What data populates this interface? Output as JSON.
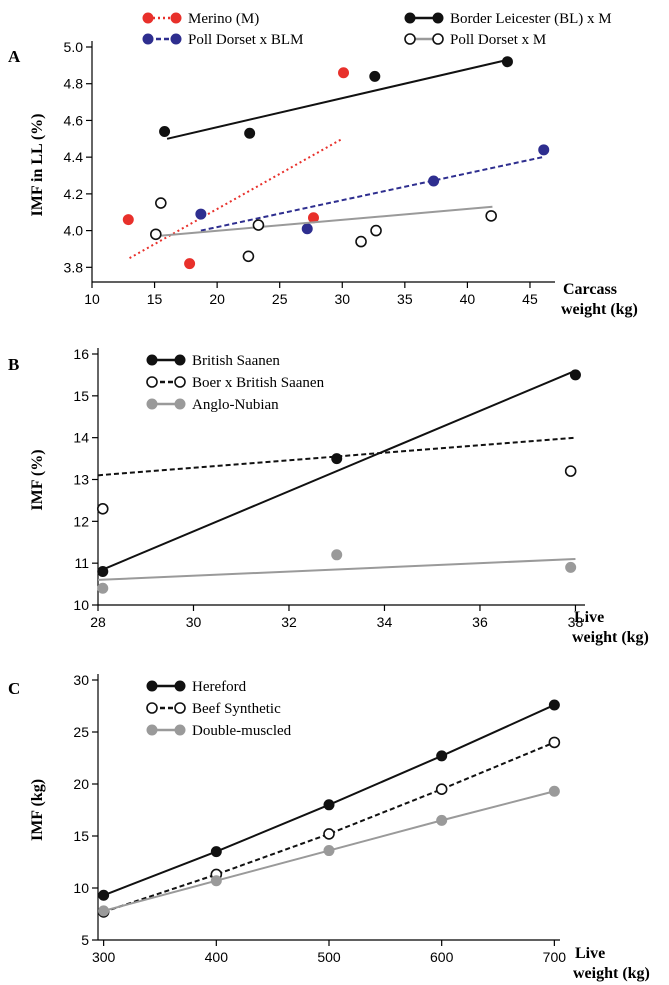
{
  "chart_data": [
    {
      "panel": "A",
      "type": "scatter",
      "xlabel": [
        "Carcass",
        "weight (kg)"
      ],
      "ylabel": "IMF in LL (%)",
      "xlim": [
        10,
        47
      ],
      "ylim": [
        3.72,
        5.0
      ],
      "xticks": [
        10,
        15,
        20,
        25,
        30,
        35,
        40,
        45
      ],
      "yticks": [
        3.8,
        4.0,
        4.2,
        4.4,
        4.6,
        4.8,
        5.0
      ],
      "ytick_decimals": 1,
      "legend": "top",
      "series": [
        {
          "name": "Merino (M)",
          "color": "#e8302b",
          "marker": "filled",
          "line_style": "dotted",
          "points": [
            [
              12.9,
              4.06
            ],
            [
              17.8,
              3.82
            ],
            [
              27.7,
              4.07
            ],
            [
              30.1,
              4.86
            ]
          ],
          "trend": [
            [
              13,
              3.85
            ],
            [
              30,
              4.5
            ]
          ]
        },
        {
          "name": "Border Leicester (BL) x M",
          "color": "#111111",
          "marker": "filled",
          "line_style": "solid",
          "points": [
            [
              15.8,
              4.54
            ],
            [
              22.6,
              4.53
            ],
            [
              32.6,
              4.84
            ],
            [
              43.2,
              4.92
            ]
          ],
          "trend": [
            [
              16,
              4.5
            ],
            [
              43.2,
              4.93
            ]
          ]
        },
        {
          "name": "Poll Dorset x BLM",
          "color": "#2e2e8f",
          "marker": "filled",
          "line_style": "dashed",
          "points": [
            [
              18.7,
              4.09
            ],
            [
              27.2,
              4.01
            ],
            [
              37.3,
              4.27
            ],
            [
              46.1,
              4.44
            ]
          ],
          "trend": [
            [
              18.7,
              4.0
            ],
            [
              46,
              4.4
            ]
          ]
        },
        {
          "name": "Poll Dorset x M",
          "color": "#9a9a9a",
          "point_color": "#111111",
          "marker": "open",
          "line_style": "solid",
          "points": [
            [
              15.1,
              3.98
            ],
            [
              15.5,
              4.15
            ],
            [
              22.5,
              3.86
            ],
            [
              23.3,
              4.03
            ],
            [
              31.5,
              3.94
            ],
            [
              32.7,
              4.0
            ],
            [
              41.9,
              4.08
            ]
          ],
          "trend": [
            [
              15.1,
              3.97
            ],
            [
              42,
              4.13
            ]
          ]
        }
      ]
    },
    {
      "panel": "B",
      "type": "scatter",
      "xlabel": [
        "Live",
        "weight (kg)"
      ],
      "ylabel": "IMF (%)",
      "xlim": [
        28,
        38.2
      ],
      "ylim": [
        10,
        16
      ],
      "xticks": [
        28,
        30,
        32,
        34,
        36,
        38
      ],
      "yticks": [
        10,
        11,
        12,
        13,
        14,
        15,
        16
      ],
      "ytick_decimals": 0,
      "legend": "top-left",
      "series": [
        {
          "name": "British Saanen",
          "color": "#111111",
          "marker": "filled",
          "line_style": "solid",
          "points": [
            [
              28.1,
              10.8
            ],
            [
              33,
              13.5
            ],
            [
              38,
              15.5
            ]
          ],
          "trend": [
            [
              28,
              10.8
            ],
            [
              38,
              15.6
            ]
          ]
        },
        {
          "name": "Boer x British Saanen",
          "color": "#111111",
          "marker": "open",
          "line_style": "dashed",
          "points": [
            [
              28.1,
              12.3
            ],
            [
              37.9,
              13.2
            ]
          ],
          "trend": [
            [
              28,
              13.1
            ],
            [
              38,
              14.0
            ]
          ]
        },
        {
          "name": "Anglo-Nubian",
          "color": "#9a9a9a",
          "marker": "filled",
          "line_style": "solid",
          "points": [
            [
              28.1,
              10.4
            ],
            [
              33,
              11.2
            ],
            [
              37.9,
              10.9
            ]
          ],
          "trend": [
            [
              28,
              10.6
            ],
            [
              38,
              11.1
            ]
          ]
        }
      ]
    },
    {
      "panel": "C",
      "type": "line",
      "xlabel": [
        "Live",
        "weight (kg)"
      ],
      "ylabel": "IMF (kg)",
      "xlim": [
        295,
        705
      ],
      "ylim": [
        5,
        30
      ],
      "xticks": [
        300,
        400,
        500,
        600,
        700
      ],
      "yticks": [
        5,
        10,
        15,
        20,
        25,
        30
      ],
      "ytick_decimals": 0,
      "legend": "top-left",
      "series": [
        {
          "name": "Hereford",
          "color": "#111111",
          "marker": "filled",
          "line_style": "solid",
          "points": [
            [
              300,
              9.3
            ],
            [
              400,
              13.5
            ],
            [
              500,
              18.0
            ],
            [
              600,
              22.7
            ],
            [
              700,
              27.6
            ]
          ]
        },
        {
          "name": "Beef Synthetic",
          "color": "#111111",
          "marker": "open",
          "line_style": "dashed",
          "points": [
            [
              300,
              7.7
            ],
            [
              400,
              11.3
            ],
            [
              500,
              15.2
            ],
            [
              600,
              19.5
            ],
            [
              700,
              24.0
            ]
          ]
        },
        {
          "name": "Double-muscled",
          "color": "#9a9a9a",
          "marker": "filled",
          "line_style": "solid",
          "points": [
            [
              300,
              7.8
            ],
            [
              400,
              10.7
            ],
            [
              500,
              13.6
            ],
            [
              600,
              16.5
            ],
            [
              700,
              19.3
            ]
          ]
        }
      ]
    }
  ]
}
